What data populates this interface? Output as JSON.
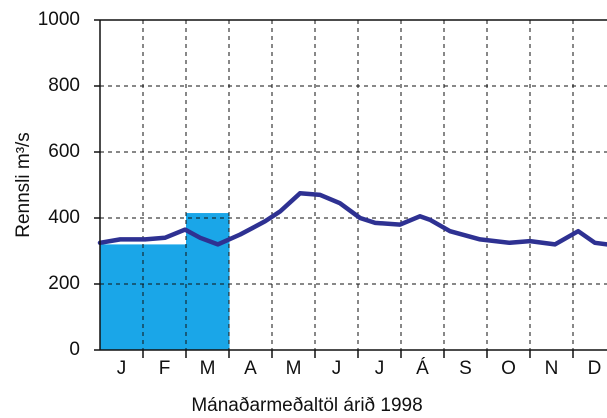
{
  "chart_data": {
    "type": "bar",
    "x_label": "Mánaðarmeðaltöl árið 1998",
    "y_label": "Rennsli m³/s",
    "categories": [
      "J",
      "F",
      "M",
      "A",
      "M",
      "J",
      "J",
      "Á",
      "S",
      "O",
      "N",
      "D"
    ],
    "ylim": [
      0,
      1000
    ],
    "yticks": [
      0,
      200,
      400,
      600,
      800,
      1000
    ],
    "xlim": [
      0,
      12
    ],
    "grid": true,
    "series": [
      {
        "type": "bar",
        "color": "#1aa6e8",
        "values": [
          320,
          320,
          415,
          null,
          null,
          null,
          null,
          null,
          null,
          null,
          null,
          null
        ]
      },
      {
        "type": "line",
        "color": "#2e3192",
        "x": [
          0,
          0.47,
          1.05,
          1.51,
          1.98,
          2.33,
          2.74,
          3.26,
          3.84,
          4.19,
          4.65,
          5.12,
          5.58,
          6.05,
          6.4,
          6.98,
          7.44,
          7.67,
          8.14,
          8.84,
          9.53,
          10,
          10.58,
          11.12,
          11.51,
          11.79
        ],
        "values": [
          325,
          335,
          335,
          340,
          365,
          340,
          320,
          350,
          390,
          420,
          475,
          470,
          445,
          400,
          385,
          380,
          405,
          395,
          360,
          335,
          325,
          330,
          320,
          360,
          325,
          320
        ]
      }
    ]
  }
}
